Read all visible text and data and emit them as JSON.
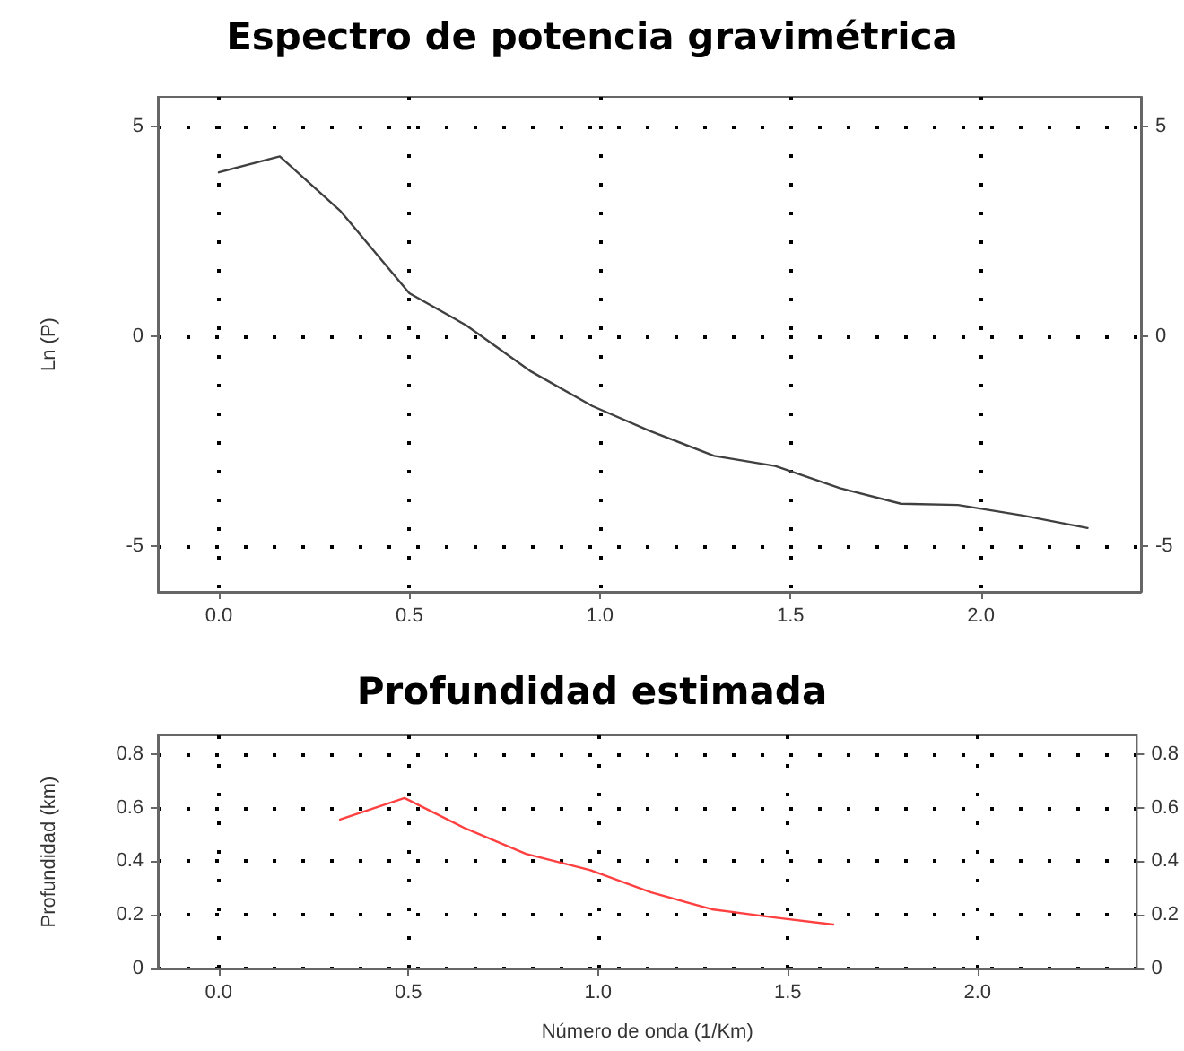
{
  "chart_data": [
    {
      "type": "line",
      "title": "Espectro de potencia gravimétrica",
      "ylabel": "Ln (P)",
      "x": [
        0,
        0.16,
        0.32,
        0.5,
        0.65,
        0.82,
        0.98,
        1.13,
        1.3,
        1.46,
        1.63,
        1.79,
        1.94,
        2.11,
        2.28
      ],
      "series": [
        {
          "color": "#404040",
          "values": [
            3.9,
            4.28,
            2.97,
            1.02,
            0.25,
            -0.85,
            -1.67,
            -2.26,
            -2.86,
            -3.1,
            -3.63,
            -4.0,
            -4.03,
            -4.28,
            -4.58
          ]
        }
      ],
      "xlim": [
        -0.16,
        2.42
      ],
      "xticks": [
        {
          "value": 0,
          "label": "0.0"
        },
        {
          "value": 0.5,
          "label": "0.5"
        },
        {
          "value": 1,
          "label": "1.0"
        },
        {
          "value": 1.5,
          "label": "1.5"
        },
        {
          "value": 2,
          "label": "2.0"
        }
      ],
      "ylim": [
        -6.1,
        5.7
      ],
      "yticks": [
        -5,
        0,
        5
      ],
      "y2lim": [
        -6.1,
        5.7
      ],
      "y2ticks": [
        -5,
        0,
        5
      ],
      "grid": true,
      "marker": "none"
    },
    {
      "type": "line",
      "title": "Profundidad estimada",
      "xlabel": "Número de onda (1/Km)",
      "ylabel": "Profundidad (km)",
      "x": [
        0.32,
        0.49,
        0.65,
        0.81,
        0.98,
        1.14,
        1.3,
        1.46,
        1.62
      ],
      "series": [
        {
          "color": "#ff4040",
          "values": [
            0.556,
            0.636,
            0.523,
            0.428,
            0.367,
            0.284,
            0.221,
            0.191,
            0.164
          ]
        }
      ],
      "xlim": [
        -0.16,
        2.42
      ],
      "xticks": [
        {
          "value": 0,
          "label": "0.0"
        },
        {
          "value": 0.5,
          "label": "0.5"
        },
        {
          "value": 1,
          "label": "1.0"
        },
        {
          "value": 1.5,
          "label": "1.5"
        },
        {
          "value": 2,
          "label": "2.0"
        }
      ],
      "ylim": [
        0,
        0.87
      ],
      "yticks": [
        0,
        0.2,
        0.4,
        0.6,
        0.8
      ],
      "y2lim": [
        0,
        0.87
      ],
      "y2ticks": [
        0,
        0.2,
        0.4,
        0.6,
        0.8
      ],
      "grid": true,
      "marker": "none"
    }
  ]
}
